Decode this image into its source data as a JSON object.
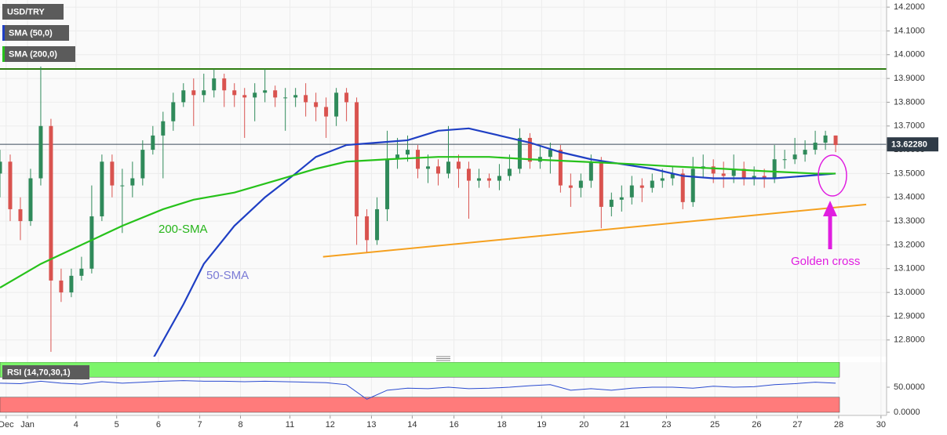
{
  "chart_data": [
    {
      "type": "candlestick",
      "title": "USD/TRY",
      "xlim": [
        0,
        174
      ],
      "xticks": [
        {
          "value": 1.2,
          "label": "Dec"
        },
        {
          "value": 5.4,
          "label": "Jan"
        },
        {
          "value": 14.9,
          "label": "4"
        },
        {
          "value": 22.9,
          "label": "5"
        },
        {
          "value": 31.1,
          "label": "6"
        },
        {
          "value": 39.2,
          "label": "7"
        },
        {
          "value": 47.2,
          "label": "8"
        },
        {
          "value": 56.9,
          "label": "11"
        },
        {
          "value": 64.8,
          "label": "12"
        },
        {
          "value": 72.9,
          "label": "13"
        },
        {
          "value": 80.9,
          "label": "14"
        },
        {
          "value": 89.1,
          "label": "16"
        },
        {
          "value": 98.5,
          "label": "18"
        },
        {
          "value": 106.3,
          "label": "19"
        },
        {
          "value": 114.6,
          "label": "20"
        },
        {
          "value": 122.6,
          "label": "21"
        },
        {
          "value": 130.8,
          "label": "23"
        },
        {
          "value": 140.3,
          "label": "25"
        },
        {
          "value": 148.5,
          "label": "26"
        },
        {
          "value": 156.5,
          "label": "27"
        },
        {
          "value": 164.6,
          "label": "28"
        },
        {
          "value": 172.9,
          "label": "30"
        }
      ],
      "ylim": [
        12.73,
        14.23
      ],
      "yticks": [
        {
          "value": 14.2,
          "label": "14.2000"
        },
        {
          "value": 14.1,
          "label": "14.1000"
        },
        {
          "value": 14.0,
          "label": "14.0000"
        },
        {
          "value": 13.9,
          "label": "13.9000"
        },
        {
          "value": 13.8,
          "label": "13.8000"
        },
        {
          "value": 13.7,
          "label": "13.7000"
        },
        {
          "value": 13.6,
          "label": "13.6000"
        },
        {
          "value": 13.5,
          "label": "13.5000"
        },
        {
          "value": 13.4,
          "label": "13.4000"
        },
        {
          "value": 13.3,
          "label": "13.3000"
        },
        {
          "value": 13.2,
          "label": "13.2000"
        },
        {
          "value": 13.1,
          "label": "13.1000"
        },
        {
          "value": 13.0,
          "label": "13.0000"
        },
        {
          "value": 12.9,
          "label": "12.9000"
        },
        {
          "value": 12.8,
          "label": "12.8000"
        }
      ],
      "grid": true,
      "up_color": "#2f8a5a",
      "down_color": "#d9534f",
      "candles": {
        "x": [
          0,
          2,
          4,
          6,
          8,
          10,
          12,
          14,
          16,
          18,
          20,
          22,
          24,
          26,
          28,
          30,
          32,
          34,
          36,
          38,
          40,
          42,
          44,
          46,
          48,
          50,
          52,
          54,
          56,
          58,
          60,
          62,
          64,
          66,
          68,
          70,
          72,
          74,
          76,
          78,
          80,
          82,
          84,
          86,
          88,
          90,
          92,
          94,
          96,
          98,
          100,
          102,
          104,
          106,
          108,
          110,
          112,
          114,
          116,
          118,
          120,
          122,
          124,
          126,
          128,
          130,
          132,
          134,
          136,
          138,
          140,
          142,
          144,
          146,
          148,
          150,
          152,
          154,
          156,
          158,
          160,
          162,
          164
        ],
        "open": [
          13.5,
          13.55,
          13.35,
          13.3,
          13.48,
          13.7,
          13.05,
          13.0,
          13.07,
          13.1,
          13.32,
          13.55,
          13.45,
          13.45,
          13.48,
          13.6,
          13.66,
          13.72,
          13.8,
          13.85,
          13.83,
          13.85,
          13.9,
          13.85,
          13.83,
          13.82,
          13.84,
          13.85,
          13.82,
          13.82,
          13.83,
          13.8,
          13.78,
          13.74,
          13.84,
          13.8,
          13.32,
          13.22,
          13.35,
          13.56,
          13.58,
          13.6,
          13.52,
          13.53,
          13.5,
          13.55,
          13.52,
          13.47,
          13.48,
          13.47,
          13.49,
          13.52,
          13.65,
          13.55,
          13.57,
          13.6,
          13.45,
          13.44,
          13.47,
          13.55,
          13.36,
          13.39,
          13.4,
          13.45,
          13.44,
          13.47,
          13.48,
          13.5,
          13.38,
          13.52,
          13.53,
          13.5,
          13.49,
          13.52,
          13.48,
          13.49,
          13.48,
          13.56,
          13.56,
          13.58,
          13.6,
          13.63,
          13.66
        ],
        "high": [
          13.6,
          13.58,
          13.4,
          13.52,
          13.95,
          13.73,
          13.1,
          13.1,
          13.15,
          13.45,
          13.58,
          13.58,
          13.52,
          13.55,
          13.64,
          13.7,
          13.76,
          13.84,
          13.88,
          13.9,
          13.92,
          13.94,
          13.92,
          13.88,
          13.86,
          13.88,
          13.94,
          13.87,
          13.86,
          13.86,
          13.88,
          13.84,
          13.82,
          13.86,
          13.86,
          13.82,
          13.35,
          13.4,
          13.68,
          13.65,
          13.66,
          13.62,
          13.58,
          13.56,
          13.7,
          13.58,
          13.55,
          13.52,
          13.5,
          13.54,
          13.58,
          13.69,
          13.67,
          13.62,
          13.63,
          13.62,
          13.5,
          13.5,
          13.58,
          13.57,
          13.42,
          13.45,
          13.49,
          13.48,
          13.5,
          13.52,
          13.53,
          13.52,
          13.57,
          13.58,
          13.56,
          13.55,
          13.58,
          13.55,
          13.53,
          13.52,
          13.62,
          13.6,
          13.65,
          13.64,
          13.68,
          13.68,
          13.66
        ],
        "low": [
          13.4,
          13.3,
          13.22,
          13.28,
          13.45,
          12.75,
          12.96,
          12.98,
          13.05,
          13.08,
          13.3,
          13.4,
          13.25,
          13.4,
          13.45,
          13.58,
          13.48,
          13.68,
          13.78,
          13.7,
          13.8,
          13.82,
          13.78,
          13.78,
          13.65,
          13.72,
          13.8,
          13.78,
          13.68,
          13.78,
          13.74,
          13.72,
          13.65,
          13.7,
          13.72,
          13.2,
          13.17,
          13.2,
          13.3,
          13.52,
          13.55,
          13.48,
          13.46,
          13.45,
          13.48,
          13.44,
          13.31,
          13.44,
          13.44,
          13.43,
          13.47,
          13.5,
          13.52,
          13.52,
          13.5,
          13.42,
          13.36,
          13.4,
          13.44,
          13.27,
          13.32,
          13.34,
          13.37,
          13.38,
          13.42,
          13.44,
          13.45,
          13.35,
          13.36,
          13.48,
          13.46,
          13.44,
          13.46,
          13.45,
          13.45,
          13.44,
          13.46,
          13.52,
          13.54,
          13.55,
          13.58,
          13.6,
          13.59
        ],
        "close": [
          13.55,
          13.35,
          13.3,
          13.48,
          13.7,
          13.05,
          13.0,
          13.07,
          13.1,
          13.32,
          13.55,
          13.45,
          13.45,
          13.48,
          13.6,
          13.66,
          13.72,
          13.8,
          13.85,
          13.83,
          13.85,
          13.9,
          13.85,
          13.83,
          13.82,
          13.84,
          13.85,
          13.82,
          13.82,
          13.83,
          13.8,
          13.78,
          13.74,
          13.84,
          13.8,
          13.32,
          13.22,
          13.35,
          13.56,
          13.58,
          13.6,
          13.52,
          13.53,
          13.5,
          13.55,
          13.52,
          13.47,
          13.48,
          13.47,
          13.49,
          13.52,
          13.65,
          13.55,
          13.57,
          13.6,
          13.45,
          13.44,
          13.47,
          13.55,
          13.36,
          13.39,
          13.4,
          13.45,
          13.44,
          13.47,
          13.48,
          13.5,
          13.38,
          13.52,
          13.53,
          13.5,
          13.49,
          13.52,
          13.48,
          13.49,
          13.48,
          13.56,
          13.56,
          13.58,
          13.6,
          13.63,
          13.66,
          13.62
        ]
      },
      "series": [
        {
          "name": "SMA (50,0)",
          "color": "#1f3fc4",
          "x": [
            30,
            36,
            40,
            46,
            52,
            58,
            62,
            68,
            74,
            80,
            86,
            92,
            98,
            104,
            110,
            116,
            122,
            128,
            134,
            140,
            146,
            152,
            158,
            164
          ],
          "values": [
            12.72,
            12.95,
            13.12,
            13.28,
            13.4,
            13.5,
            13.57,
            13.62,
            13.63,
            13.64,
            13.68,
            13.69,
            13.66,
            13.63,
            13.59,
            13.56,
            13.54,
            13.52,
            13.49,
            13.48,
            13.48,
            13.48,
            13.49,
            13.5
          ]
        },
        {
          "name": "SMA (200,0)",
          "color": "#27c21b",
          "x": [
            0,
            8,
            16,
            24,
            32,
            38,
            46,
            54,
            62,
            68,
            76,
            86,
            96,
            104,
            114,
            124,
            132,
            142,
            150,
            160,
            164
          ],
          "values": [
            13.02,
            13.12,
            13.2,
            13.28,
            13.35,
            13.39,
            13.42,
            13.47,
            13.52,
            13.55,
            13.56,
            13.57,
            13.57,
            13.56,
            13.55,
            13.54,
            13.53,
            13.52,
            13.51,
            13.5,
            13.5
          ]
        }
      ],
      "resistance": {
        "value": 13.94,
        "color": "#2f7d12"
      },
      "last_price": {
        "value": 13.6228,
        "label": "13.62280"
      },
      "trendline": {
        "x": [
          63.4,
          170
        ],
        "values": [
          13.15,
          13.37
        ],
        "color": "#f5a01f"
      },
      "annotations": [
        {
          "text": "200-SMA",
          "color": "#27b51b"
        },
        {
          "text": "50-SMA",
          "color": "#7b7bd6"
        },
        {
          "text": "Golden cross",
          "color": "#e01ee0"
        }
      ]
    },
    {
      "type": "line",
      "title": "RSI (14,70,30,1)",
      "xlim": [
        0,
        174
      ],
      "x": [
        0,
        4,
        8,
        12,
        16,
        20,
        24,
        28,
        32,
        36,
        40,
        44,
        48,
        52,
        56,
        60,
        64,
        68,
        72,
        76,
        80,
        84,
        88,
        92,
        96,
        100,
        104,
        108,
        112,
        116,
        120,
        124,
        128,
        132,
        136,
        140,
        144,
        148,
        152,
        156,
        160,
        164
      ],
      "values": [
        58,
        57,
        62,
        58,
        56,
        61,
        58,
        60,
        62,
        63,
        62,
        62,
        61,
        62,
        61,
        60,
        59,
        55,
        26,
        44,
        48,
        47,
        50,
        47,
        48,
        50,
        53,
        55,
        44,
        47,
        44,
        48,
        50,
        50,
        48,
        52,
        50,
        51,
        55,
        57,
        60,
        58
      ],
      "color": "#2a4bd0",
      "ylim": [
        0,
        100
      ],
      "yticks": [
        {
          "value": 50,
          "label": "50.0000"
        },
        {
          "value": 0,
          "label": "0.0000"
        }
      ],
      "bands": [
        {
          "from": 70,
          "to": 100,
          "color": "#7cf56a"
        },
        {
          "from": 0,
          "to": 30,
          "color": "#ff7b7b"
        }
      ]
    }
  ]
}
